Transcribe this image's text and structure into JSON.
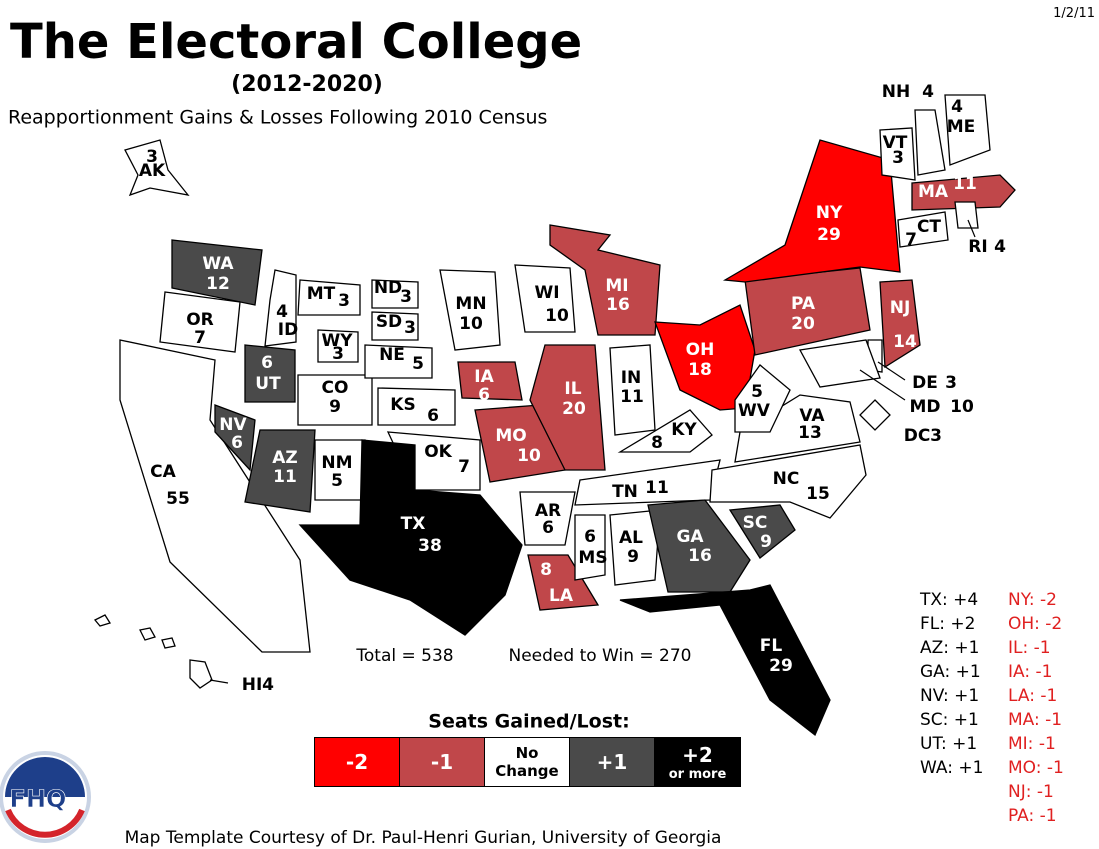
{
  "date": "1/2/11",
  "title": "The Electoral College",
  "subtitle": "(2012-2020)",
  "description": "Reapportionment Gains & Losses Following 2010 Census",
  "totals": {
    "total": "Total = 538",
    "needed": "Needed to Win = 270"
  },
  "legend": {
    "title": "Seats Gained/Lost:",
    "items": [
      {
        "label": "-2",
        "color": "#ff0000"
      },
      {
        "label": "-1",
        "color": "#c0474a"
      },
      {
        "label": "No Change",
        "color": "#ffffff"
      },
      {
        "label": "+1",
        "color": "#4a4a4a"
      },
      {
        "label": "+2",
        "note": "or more",
        "color": "#000000"
      }
    ]
  },
  "gains": [
    "TX: +4",
    "FL: +2",
    "AZ: +1",
    "GA: +1",
    "NV: +1",
    "SC: +1",
    "UT: +1",
    "WA: +1"
  ],
  "losses": [
    "NY: -2",
    "OH: -2",
    "IL: -1",
    "IA: -1",
    "LA: -1",
    "MA: -1",
    "MI: -1",
    "MO: -1",
    "NJ: -1",
    "PA: -1"
  ],
  "logo": "FHQ",
  "credit": "Map Template Courtesy of Dr. Paul-Henri Gurian, University of Georgia",
  "states": [
    {
      "abbr": "AK",
      "votes": 3,
      "color": "#ffffff"
    },
    {
      "abbr": "WA",
      "votes": 12,
      "color": "#4a4a4a"
    },
    {
      "abbr": "OR",
      "votes": 7,
      "color": "#ffffff"
    },
    {
      "abbr": "CA",
      "votes": 55,
      "color": "#ffffff"
    },
    {
      "abbr": "ID",
      "votes": 4,
      "color": "#ffffff"
    },
    {
      "abbr": "NV",
      "votes": 6,
      "color": "#4a4a4a"
    },
    {
      "abbr": "UT",
      "votes": 6,
      "color": "#4a4a4a"
    },
    {
      "abbr": "AZ",
      "votes": 11,
      "color": "#4a4a4a"
    },
    {
      "abbr": "MT",
      "votes": 3,
      "color": "#ffffff"
    },
    {
      "abbr": "WY",
      "votes": 3,
      "color": "#ffffff"
    },
    {
      "abbr": "CO",
      "votes": 9,
      "color": "#ffffff"
    },
    {
      "abbr": "NM",
      "votes": 5,
      "color": "#ffffff"
    },
    {
      "abbr": "ND",
      "votes": 3,
      "color": "#ffffff"
    },
    {
      "abbr": "SD",
      "votes": 3,
      "color": "#ffffff"
    },
    {
      "abbr": "NE",
      "votes": 5,
      "color": "#ffffff"
    },
    {
      "abbr": "KS",
      "votes": 6,
      "color": "#ffffff"
    },
    {
      "abbr": "OK",
      "votes": 7,
      "color": "#ffffff"
    },
    {
      "abbr": "TX",
      "votes": 38,
      "color": "#000000"
    },
    {
      "abbr": "MN",
      "votes": 10,
      "color": "#ffffff"
    },
    {
      "abbr": "IA",
      "votes": 6,
      "color": "#c0474a"
    },
    {
      "abbr": "MO",
      "votes": 10,
      "color": "#c0474a"
    },
    {
      "abbr": "AR",
      "votes": 6,
      "color": "#ffffff"
    },
    {
      "abbr": "LA",
      "votes": 8,
      "color": "#c0474a"
    },
    {
      "abbr": "WI",
      "votes": 10,
      "color": "#ffffff"
    },
    {
      "abbr": "MI",
      "votes": 16,
      "color": "#c0474a"
    },
    {
      "abbr": "IL",
      "votes": 20,
      "color": "#c0474a"
    },
    {
      "abbr": "IN",
      "votes": 11,
      "color": "#ffffff"
    },
    {
      "abbr": "OH",
      "votes": 18,
      "color": "#ff0000"
    },
    {
      "abbr": "KY",
      "votes": 8,
      "color": "#ffffff"
    },
    {
      "abbr": "TN",
      "votes": 11,
      "color": "#ffffff"
    },
    {
      "abbr": "MS",
      "votes": 6,
      "color": "#ffffff"
    },
    {
      "abbr": "AL",
      "votes": 9,
      "color": "#ffffff"
    },
    {
      "abbr": "GA",
      "votes": 16,
      "color": "#4a4a4a"
    },
    {
      "abbr": "FL",
      "votes": 29,
      "color": "#000000"
    },
    {
      "abbr": "SC",
      "votes": 9,
      "color": "#4a4a4a"
    },
    {
      "abbr": "NC",
      "votes": 15,
      "color": "#ffffff"
    },
    {
      "abbr": "VA",
      "votes": 13,
      "color": "#ffffff"
    },
    {
      "abbr": "WV",
      "votes": 5,
      "color": "#ffffff"
    },
    {
      "abbr": "PA",
      "votes": 20,
      "color": "#c0474a"
    },
    {
      "abbr": "NY",
      "votes": 29,
      "color": "#ff0000"
    },
    {
      "abbr": "NJ",
      "votes": 14,
      "color": "#c0474a"
    },
    {
      "abbr": "DE",
      "votes": 3,
      "color": "#ffffff"
    },
    {
      "abbr": "MD",
      "votes": 10,
      "color": "#ffffff"
    },
    {
      "abbr": "DC",
      "votes": 3,
      "color": "#ffffff"
    },
    {
      "abbr": "VT",
      "votes": 3,
      "color": "#ffffff"
    },
    {
      "abbr": "NH",
      "votes": 4,
      "color": "#ffffff"
    },
    {
      "abbr": "ME",
      "votes": 4,
      "color": "#ffffff"
    },
    {
      "abbr": "MA",
      "votes": 11,
      "color": "#c0474a"
    },
    {
      "abbr": "CT",
      "votes": 7,
      "color": "#ffffff"
    },
    {
      "abbr": "RI",
      "votes": 4,
      "color": "#ffffff"
    },
    {
      "abbr": "HI",
      "votes": 4,
      "color": "#ffffff"
    }
  ]
}
